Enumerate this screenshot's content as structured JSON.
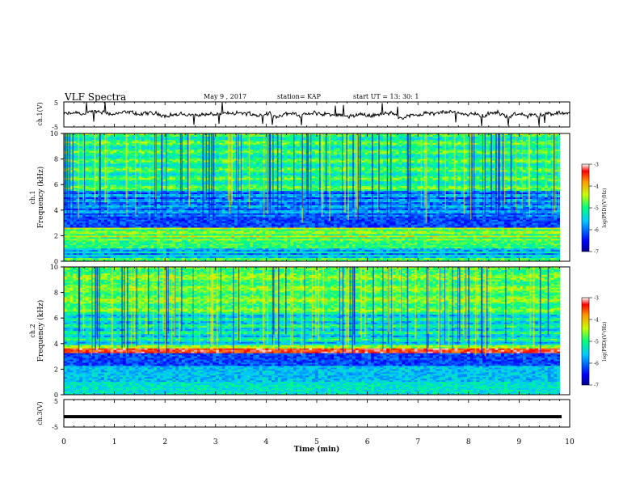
{
  "header": {
    "title": "VLF Spectra",
    "date": "May 9 , 2017",
    "station": "station= KAP",
    "start": "start UT =  13: 30: 1"
  },
  "chart_data": [
    {
      "type": "line",
      "panel": "ch1-waveform",
      "ylabel": "ch.1(V)",
      "ylim": [
        -5,
        5
      ],
      "yticks": [
        "-5",
        "5"
      ],
      "xlim": [
        0,
        10
      ],
      "description_values": {
        "mean_level": 0,
        "typical_amplitude": 1.5
      }
    },
    {
      "type": "heatmap",
      "panel": "ch1-spectrogram",
      "ylabel_top": "ch.1",
      "ylabel": "Frequency (kHz)",
      "ylim": [
        0,
        10
      ],
      "yticks": [
        "0",
        "2",
        "4",
        "6",
        "8",
        "10"
      ],
      "xlim": [
        0,
        10
      ],
      "colorbar": {
        "label": "log(PSD)(V²/Hz)",
        "ticks": [
          "-3",
          "-4",
          "-5",
          "-6",
          "-7"
        ],
        "range": [
          -7,
          -3
        ]
      }
    },
    {
      "type": "heatmap",
      "panel": "ch2-spectrogram",
      "ylabel_top": "ch.2",
      "ylabel": "Frequency (kHz)",
      "ylim": [
        0,
        10
      ],
      "yticks": [
        "0",
        "2",
        "4",
        "6",
        "8",
        "10"
      ],
      "xlim": [
        0,
        10
      ],
      "colorbar": {
        "label": "log(PSD)(V²/Hz)",
        "ticks": [
          "-3",
          "-4",
          "-5",
          "-6",
          "-7"
        ],
        "range": [
          -7,
          -3
        ]
      }
    },
    {
      "type": "line",
      "panel": "ch3-waveform",
      "ylabel": "ch.3(V)",
      "ylim": [
        -5,
        5
      ],
      "yticks": [
        "-5",
        "5"
      ],
      "xlim": [
        0,
        10
      ],
      "description_values": {
        "constant_level": -1.2
      }
    }
  ],
  "xaxis": {
    "label": "Time (min)",
    "ticks": [
      "0",
      "1",
      "2",
      "3",
      "4",
      "5",
      "6",
      "7",
      "8",
      "9",
      "10"
    ],
    "range": [
      0,
      10
    ]
  }
}
